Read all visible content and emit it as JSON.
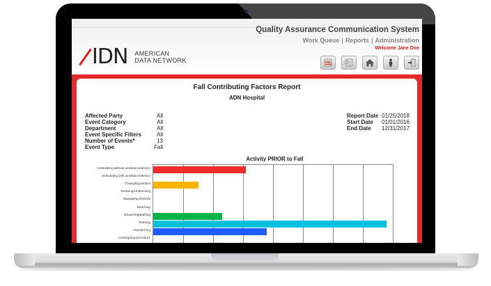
{
  "app": {
    "system_title": "Quality Assurance Communication System",
    "logo_mark": "ADN",
    "logo_line1": "AMERICAN",
    "logo_line2": "DATA NETWORK",
    "nav": [
      {
        "label": "Work Queue"
      },
      {
        "label": "Reports"
      },
      {
        "label": "Administration"
      }
    ],
    "nav_separator": "|",
    "welcome": "Welcome Jane Doe",
    "toolbar": [
      {
        "icon": "xml-export-icon",
        "label": "XML"
      },
      {
        "icon": "document-icon",
        "label": "Document"
      },
      {
        "icon": "home-icon",
        "label": "Home"
      },
      {
        "icon": "user-icon",
        "label": "User"
      },
      {
        "icon": "logout-icon",
        "label": "Log out"
      }
    ],
    "colors": {
      "brand_red": "#e32b2b",
      "welcome_red": "#e02020",
      "nav_gray": "#888888"
    }
  },
  "report": {
    "title": "Fall Contributing Factors Report",
    "subtitle": "ADN Hospital",
    "filters": [
      {
        "label": "Affected Party",
        "value": "All"
      },
      {
        "label": "Event Category",
        "value": "All"
      },
      {
        "label": "Department",
        "value": "All"
      },
      {
        "label": "Event Specific Filters",
        "value": "All"
      },
      {
        "label": "Number of Events*",
        "value": "13"
      },
      {
        "label": "Event Type",
        "value": "Fall"
      }
    ],
    "dates": [
      {
        "label": "Report Date",
        "value": "01/25/2018"
      },
      {
        "label": "Start Date",
        "value": "01/01/2016"
      },
      {
        "label": "End Date",
        "value": "12/31/2017"
      }
    ]
  },
  "chart_data": {
    "type": "bar",
    "orientation": "horizontal",
    "title": "Activity PRIOR to Fall",
    "xlabel": "",
    "ylabel": "",
    "grid": true,
    "x_gridlines": 8,
    "xlim": [
      0,
      8
    ],
    "categories": [
      "Ambulating without assistance/device",
      "Ambulating with assistance/device",
      "Changing position",
      "Dressing/Undressing",
      "Navigating bedrails",
      "Reaching",
      "Showering/Bathing",
      "Toileting",
      "Transferring",
      "Undergoing procedure"
    ],
    "values": [
      3.1,
      0,
      1.5,
      0,
      0,
      0,
      2.3,
      7.8,
      3.8,
      0
    ],
    "colors": [
      "#f22b2b",
      null,
      "#ffb400",
      null,
      null,
      null,
      "#00b44a",
      "#00c0dc",
      "#1f5cff",
      null
    ]
  }
}
